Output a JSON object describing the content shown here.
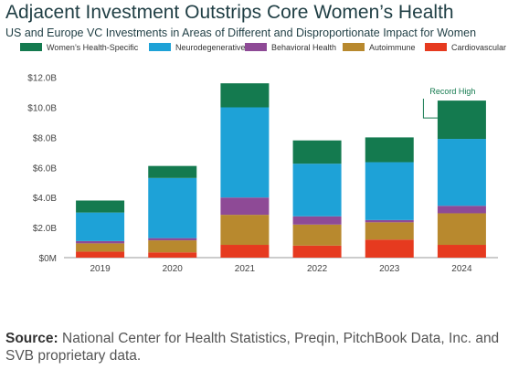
{
  "title": "Adjacent Investment Outstrips Core Women’s Health",
  "subtitle": "US and Europe VC Investments in Areas of Different and Disproportionate Impact for Women",
  "source": {
    "label": "Source:",
    "text": " National Center for Health Statistics, Preqin, PitchBook Data, Inc. and SVB proprietary data."
  },
  "chart_data": {
    "type": "bar",
    "stacked": true,
    "categories": [
      "2019",
      "2020",
      "2021",
      "2022",
      "2023",
      "2024"
    ],
    "ylim": [
      0,
      12.5
    ],
    "yticks": [
      {
        "value": 0,
        "label": "$0M"
      },
      {
        "value": 2,
        "label": "$2.0B"
      },
      {
        "value": 4,
        "label": "$4.0B"
      },
      {
        "value": 6,
        "label": "$6.0B"
      },
      {
        "value": 8,
        "label": "$8.0B"
      },
      {
        "value": 10,
        "label": "$10.0B"
      },
      {
        "value": 12,
        "label": "$12.0B"
      }
    ],
    "legend_position": "top",
    "grid": false,
    "series": [
      {
        "name": "Cardiovascular",
        "color": "#e63a1f",
        "values": [
          0.4,
          0.35,
          0.85,
          0.8,
          1.2,
          0.85
        ]
      },
      {
        "name": "Autoimmune",
        "color": "#b8892e",
        "values": [
          0.55,
          0.8,
          2.0,
          1.4,
          1.15,
          2.1
        ]
      },
      {
        "name": "Behavioral Health",
        "color": "#8e4a96",
        "values": [
          0.15,
          0.15,
          1.15,
          0.55,
          0.15,
          0.5
        ]
      },
      {
        "name": "Neurodegenerative",
        "color": "#1ea2d7",
        "values": [
          1.9,
          4.0,
          6.0,
          3.5,
          3.85,
          4.45
        ]
      },
      {
        "name": "Women’s Health-Specific",
        "color": "#147a4f",
        "values": [
          0.8,
          0.8,
          1.6,
          1.55,
          1.65,
          2.55
        ]
      }
    ],
    "legend_order": [
      "Women’s Health-Specific",
      "Neurodegenerative",
      "Behavioral Health",
      "Autoimmune",
      "Cardiovascular"
    ],
    "annotation": {
      "text": "Record High",
      "category": "2024",
      "color": "#147a4f"
    }
  }
}
